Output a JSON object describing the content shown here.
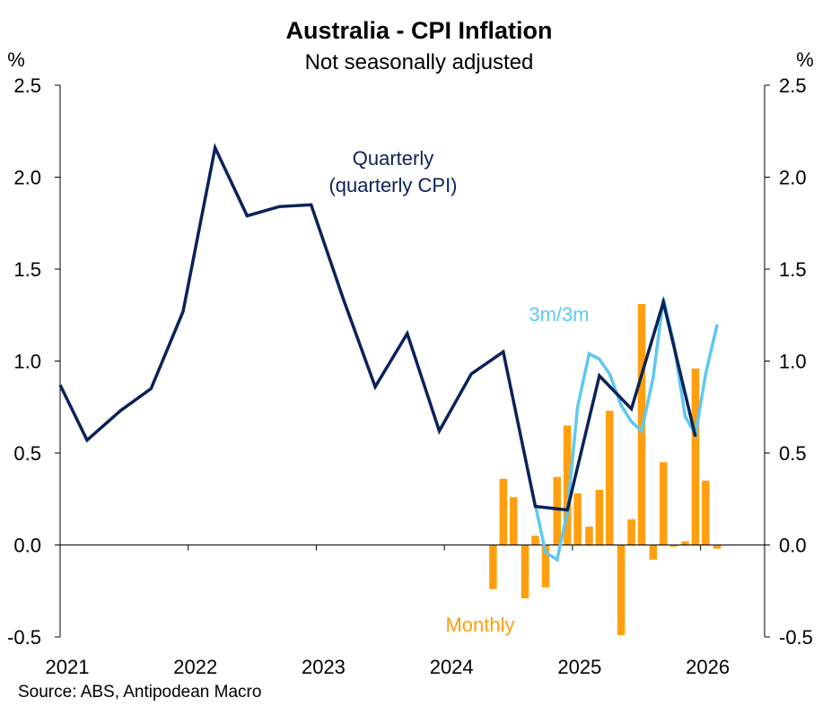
{
  "chart_data": {
    "type": "bar+line",
    "title": "Australia - CPI Inflation",
    "subtitle": "Not seasonally adjusted",
    "y_unit_left": "%",
    "y_unit_right": "%",
    "ylim": [
      -0.5,
      2.5
    ],
    "y_ticks": [
      2.5,
      2.0,
      1.5,
      1.0,
      0.5,
      0.0,
      -0.5
    ],
    "y_tick_labels": [
      "2.5",
      "2.0",
      "1.5",
      "1.0",
      "0.5",
      "0.0",
      "-0.5"
    ],
    "xlim": [
      2021.0,
      2026.5
    ],
    "x_ticks": [
      2021,
      2022,
      2023,
      2024,
      2025,
      2026
    ],
    "x_tick_labels": [
      "2021",
      "2022",
      "2023",
      "2024",
      "2025",
      "2026"
    ],
    "source": "Source: ABS, Antipodean Macro",
    "series": [
      {
        "name": "Quarterly",
        "label_lines": [
          "Quarterly",
          "(quarterly CPI)"
        ],
        "kind": "line",
        "color": "#0a2259",
        "x": [
          2021.0,
          2021.21,
          2021.47,
          2021.71,
          2021.96,
          2022.21,
          2022.46,
          2022.71,
          2022.96,
          2023.21,
          2023.46,
          2023.71,
          2023.96,
          2024.21,
          2024.46,
          2024.71,
          2024.96,
          2025.21,
          2025.46,
          2025.71,
          2025.96
        ],
        "values": [
          0.87,
          0.57,
          0.73,
          0.85,
          1.27,
          2.16,
          1.79,
          1.84,
          1.85,
          1.34,
          0.86,
          1.15,
          0.62,
          0.93,
          1.05,
          0.21,
          0.19,
          0.92,
          0.74,
          1.32,
          0.59
        ]
      },
      {
        "name": "3m/3m",
        "label_lines": [
          "3m/3m"
        ],
        "kind": "line",
        "color": "#5ec8f2",
        "x": [
          2024.71,
          2024.79,
          2024.88,
          2024.96,
          2025.04,
          2025.13,
          2025.21,
          2025.29,
          2025.38,
          2025.46,
          2025.54,
          2025.63,
          2025.71,
          2025.79,
          2025.88,
          2025.96,
          2026.04,
          2026.13
        ],
        "values": [
          0.22,
          -0.04,
          -0.08,
          0.18,
          0.75,
          1.04,
          1.01,
          0.93,
          0.76,
          0.67,
          0.62,
          0.91,
          1.34,
          1.1,
          0.7,
          0.6,
          0.93,
          1.2
        ]
      },
      {
        "name": "Monthly",
        "label_lines": [
          "Monthly"
        ],
        "kind": "bar",
        "color": "#ff9f0f",
        "x": [
          2024.38,
          2024.46,
          2024.54,
          2024.63,
          2024.71,
          2024.79,
          2024.88,
          2024.96,
          2025.04,
          2025.13,
          2025.21,
          2025.29,
          2025.38,
          2025.46,
          2025.54,
          2025.63,
          2025.71,
          2025.79,
          2025.88,
          2025.96,
          2026.04,
          2026.13
        ],
        "values": [
          -0.24,
          0.36,
          0.26,
          -0.29,
          0.05,
          -0.23,
          0.37,
          0.65,
          0.28,
          0.1,
          0.3,
          0.73,
          -0.49,
          0.14,
          1.31,
          -0.08,
          0.45,
          -0.01,
          0.02,
          0.96,
          0.35,
          -0.02
        ]
      }
    ]
  }
}
